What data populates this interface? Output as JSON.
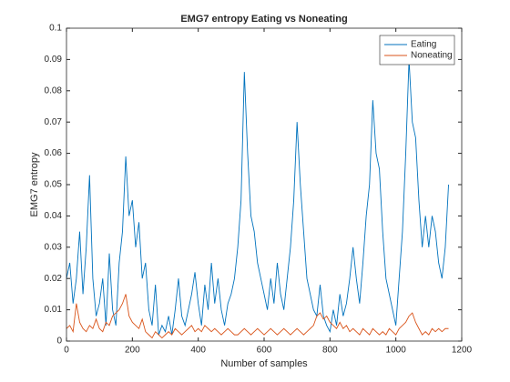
{
  "chart_data": {
    "type": "line",
    "title": "EMG7 entropy Eating vs Noneating",
    "xlabel": "Number of samples",
    "ylabel": "EMG7 entropy",
    "x": [
      0,
      10,
      20,
      30,
      40,
      50,
      60,
      70,
      80,
      90,
      100,
      110,
      120,
      130,
      140,
      150,
      160,
      170,
      180,
      190,
      200,
      210,
      220,
      230,
      240,
      250,
      260,
      270,
      280,
      290,
      300,
      310,
      320,
      330,
      340,
      350,
      360,
      370,
      380,
      390,
      400,
      410,
      420,
      430,
      440,
      450,
      460,
      470,
      480,
      490,
      500,
      510,
      520,
      530,
      540,
      550,
      560,
      570,
      580,
      590,
      600,
      610,
      620,
      630,
      640,
      650,
      660,
      670,
      680,
      690,
      700,
      710,
      720,
      730,
      740,
      750,
      760,
      770,
      780,
      790,
      800,
      810,
      820,
      830,
      840,
      850,
      860,
      870,
      880,
      890,
      900,
      910,
      920,
      930,
      940,
      950,
      960,
      970,
      980,
      990,
      1000,
      1010,
      1020,
      1030,
      1040,
      1050,
      1060,
      1070,
      1080,
      1090,
      1100,
      1110,
      1120,
      1130,
      1140,
      1150,
      1160
    ],
    "series": [
      {
        "name": "Eating",
        "color": "#0072bd",
        "values": [
          0.02,
          0.025,
          0.012,
          0.02,
          0.035,
          0.015,
          0.03,
          0.053,
          0.02,
          0.008,
          0.012,
          0.02,
          0.005,
          0.028,
          0.01,
          0.005,
          0.025,
          0.035,
          0.059,
          0.04,
          0.045,
          0.03,
          0.038,
          0.02,
          0.025,
          0.01,
          0.005,
          0.018,
          0.002,
          0.005,
          0.003,
          0.008,
          0.002,
          0.01,
          0.02,
          0.008,
          0.005,
          0.01,
          0.015,
          0.022,
          0.012,
          0.005,
          0.018,
          0.01,
          0.025,
          0.012,
          0.02,
          0.01,
          0.005,
          0.012,
          0.015,
          0.02,
          0.03,
          0.045,
          0.086,
          0.06,
          0.04,
          0.035,
          0.025,
          0.02,
          0.015,
          0.01,
          0.02,
          0.012,
          0.025,
          0.015,
          0.01,
          0.02,
          0.03,
          0.045,
          0.07,
          0.05,
          0.035,
          0.02,
          0.015,
          0.01,
          0.008,
          0.018,
          0.008,
          0.005,
          0.003,
          0.01,
          0.005,
          0.015,
          0.008,
          0.012,
          0.02,
          0.03,
          0.02,
          0.012,
          0.025,
          0.04,
          0.05,
          0.077,
          0.06,
          0.055,
          0.035,
          0.02,
          0.015,
          0.01,
          0.005,
          0.02,
          0.035,
          0.06,
          0.09,
          0.07,
          0.065,
          0.045,
          0.03,
          0.04,
          0.03,
          0.04,
          0.035,
          0.025,
          0.02,
          0.03,
          0.05
        ]
      },
      {
        "name": "Noneating",
        "color": "#d95319",
        "values": [
          0.004,
          0.005,
          0.003,
          0.012,
          0.006,
          0.004,
          0.003,
          0.005,
          0.004,
          0.007,
          0.004,
          0.003,
          0.006,
          0.005,
          0.008,
          0.009,
          0.01,
          0.012,
          0.015,
          0.008,
          0.006,
          0.005,
          0.004,
          0.007,
          0.003,
          0.002,
          0.001,
          0.003,
          0.002,
          0.001,
          0.002,
          0.003,
          0.002,
          0.004,
          0.003,
          0.002,
          0.003,
          0.004,
          0.005,
          0.003,
          0.004,
          0.003,
          0.005,
          0.004,
          0.003,
          0.004,
          0.003,
          0.002,
          0.003,
          0.004,
          0.003,
          0.002,
          0.002,
          0.003,
          0.004,
          0.003,
          0.002,
          0.003,
          0.004,
          0.003,
          0.002,
          0.003,
          0.004,
          0.003,
          0.002,
          0.003,
          0.004,
          0.003,
          0.002,
          0.003,
          0.004,
          0.003,
          0.002,
          0.003,
          0.004,
          0.005,
          0.008,
          0.009,
          0.007,
          0.008,
          0.006,
          0.005,
          0.004,
          0.006,
          0.004,
          0.005,
          0.003,
          0.004,
          0.003,
          0.002,
          0.004,
          0.003,
          0.002,
          0.004,
          0.003,
          0.002,
          0.003,
          0.002,
          0.004,
          0.003,
          0.002,
          0.004,
          0.005,
          0.006,
          0.008,
          0.009,
          0.006,
          0.004,
          0.002,
          0.003,
          0.002,
          0.004,
          0.003,
          0.004,
          0.003,
          0.004,
          0.004
        ]
      }
    ],
    "xlim": [
      0,
      1200
    ],
    "xticks": [
      0,
      200,
      400,
      600,
      800,
      1000,
      1200
    ],
    "ylim": [
      0,
      0.1
    ],
    "yticks": [
      0,
      0.01,
      0.02,
      0.03,
      0.04,
      0.05,
      0.06,
      0.07,
      0.08,
      0.09,
      0.1
    ],
    "legend": "northeast"
  }
}
